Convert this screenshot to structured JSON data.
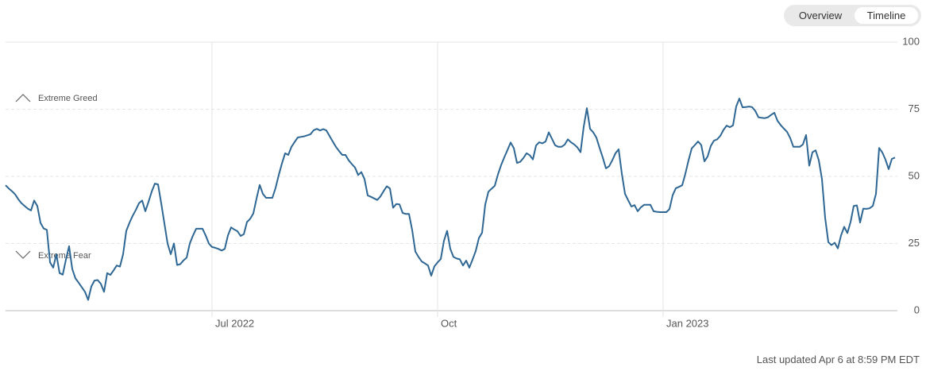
{
  "tabs": [
    "Overview",
    "Timeline"
  ],
  "footer": "Last updated Apr 6 at 8:59 PM EDT",
  "chart_data": {
    "type": "line",
    "annotations": [
      "Extreme Greed",
      "Extreme Fear"
    ],
    "color": "#2f6794",
    "ylim": [
      0,
      100
    ],
    "yticks": [
      0,
      25,
      50,
      75,
      100
    ],
    "grid": true,
    "categories": [
      null,
      null,
      null,
      null,
      null,
      null,
      null,
      null,
      null,
      null,
      null,
      null,
      null,
      null,
      null,
      null,
      null,
      null,
      null,
      null,
      null,
      null,
      null,
      null,
      null,
      null,
      null,
      null,
      null,
      null,
      null,
      null,
      null,
      null,
      null,
      null,
      null,
      null,
      null,
      null,
      null,
      null,
      null,
      null,
      null,
      null,
      null,
      null,
      null,
      null,
      null,
      null,
      null,
      null,
      null,
      null,
      null,
      null,
      null,
      null,
      null,
      null,
      null,
      null,
      null,
      "Jul 2022",
      null,
      null,
      null,
      null,
      null,
      null,
      null,
      null,
      null,
      null,
      null,
      null,
      null,
      null,
      null,
      null,
      null,
      null,
      null,
      null,
      null,
      null,
      null,
      null,
      null,
      null,
      null,
      null,
      null,
      null,
      null,
      null,
      null,
      null,
      null,
      null,
      null,
      null,
      null,
      null,
      null,
      null,
      null,
      null,
      null,
      null,
      null,
      null,
      null,
      null,
      null,
      null,
      null,
      null,
      null,
      null,
      null,
      null,
      null,
      null,
      null,
      null,
      null,
      null,
      null,
      null,
      null,
      null,
      null,
      null,
      "Oct",
      null,
      null,
      null,
      null,
      null,
      null,
      null,
      null,
      null,
      null,
      null,
      null,
      null,
      null,
      null,
      null,
      null,
      null,
      null,
      null,
      null,
      null,
      null,
      null,
      null,
      null,
      null,
      null,
      null,
      null,
      null,
      null,
      null,
      null,
      null,
      null,
      null,
      null,
      null,
      null,
      null,
      null,
      null,
      null,
      null,
      null,
      null,
      null,
      null,
      null,
      null,
      null,
      null,
      null,
      null,
      null,
      null,
      null,
      null,
      null,
      null,
      null,
      null,
      null,
      null,
      null,
      null,
      null,
      null,
      null,
      "Jan 2023",
      null,
      null,
      null,
      null,
      null,
      null,
      null,
      null,
      null,
      null,
      null,
      null,
      null,
      null,
      null,
      null,
      null,
      null,
      null,
      null,
      null,
      null,
      null,
      null,
      null,
      null,
      null,
      null,
      null,
      null,
      null,
      null,
      null,
      null,
      null,
      null,
      null,
      null,
      null,
      null,
      null,
      null,
      null,
      null,
      null,
      null,
      null,
      null,
      null,
      null,
      null,
      null,
      null,
      null,
      null,
      null,
      null,
      null,
      null,
      null,
      null,
      null,
      null,
      null,
      null,
      null,
      null,
      null,
      null,
      null,
      null,
      null,
      null
    ],
    "values": [
      46.7,
      45.5,
      44.5,
      43.3,
      41.5,
      40,
      39,
      38,
      37.3,
      41,
      39,
      32.7,
      30.6,
      30.1,
      18,
      16,
      21,
      14,
      13.4,
      19,
      24,
      15.5,
      12,
      10.4,
      8.7,
      7,
      4,
      9,
      11.2,
      11.4,
      10,
      7,
      14,
      13.3,
      15,
      16.8,
      16.4,
      21,
      29.7,
      32.7,
      35.3,
      37.5,
      40,
      41,
      37,
      40.5,
      44.3,
      47.3,
      47,
      40,
      32.5,
      25,
      21,
      25,
      17,
      17.3,
      18.7,
      19.7,
      25,
      28,
      30.5,
      30.5,
      30.5,
      28,
      25,
      23.7,
      23.4,
      23,
      22.4,
      23,
      28,
      31,
      30.2,
      29.6,
      27.8,
      28.5,
      33,
      34.2,
      36.2,
      41.7,
      46.8,
      43.5,
      42,
      42,
      42,
      45.7,
      50.5,
      54.8,
      58.6,
      58,
      61,
      62.8,
      64.5,
      64.7,
      64.9,
      65.3,
      65.7,
      67.2,
      67.7,
      67.1,
      67.6,
      67.1,
      65,
      63,
      61,
      59.4,
      58,
      58,
      56,
      54.6,
      53.3,
      50.5,
      51.6,
      49,
      42.9,
      42.4,
      41.8,
      41.2,
      42.5,
      44.5,
      46.3,
      45.5,
      38.3,
      39.7,
      39.6,
      36.4,
      36,
      36,
      30,
      22,
      20,
      18.3,
      17.6,
      16.8,
      13,
      16.5,
      18,
      19.2,
      26,
      29.7,
      23,
      20,
      19.4,
      19.1,
      16.8,
      18.6,
      16,
      19,
      22.2,
      27,
      29,
      39.5,
      44.3,
      45.4,
      46.5,
      50.7,
      54.2,
      57.1,
      59.8,
      62.6,
      60.5,
      55,
      55.4,
      56.8,
      58.6,
      57.9,
      56.3,
      61.5,
      62.7,
      62.3,
      63,
      66.4,
      64,
      61.6,
      61,
      61,
      61.8,
      63.8,
      62.7,
      61.9,
      60.8,
      59,
      68.5,
      75.4,
      67.7,
      66.4,
      64.4,
      60.6,
      57,
      53,
      53.8,
      56,
      58.6,
      60.1,
      51,
      43.5,
      41.1,
      38.8,
      39.3,
      37,
      38.5,
      39.4,
      39.4,
      39.4,
      37,
      36.8,
      36.7,
      36.7,
      36.7,
      37.8,
      43,
      45.6,
      46.1,
      46.7,
      51,
      56,
      60.4,
      61.7,
      63,
      61.7,
      55.6,
      57.4,
      61.3,
      63.3,
      63.8,
      65.1,
      67.3,
      68.9,
      68.3,
      69,
      76,
      79,
      75.7,
      75.8,
      76,
      75.8,
      74.4,
      72,
      71.8,
      71.7,
      72,
      72.9,
      73.7,
      70.7,
      69.1,
      67.8,
      66.6,
      64.3,
      61,
      61,
      61,
      61.9,
      65.4,
      54,
      59,
      59.7,
      56,
      49,
      34.6,
      25.5,
      24.4,
      25.3,
      23.2,
      28,
      31.2,
      28.9,
      33,
      39,
      39.2,
      32.8,
      38,
      37.9,
      38.1,
      39,
      43.5,
      60.6,
      58.9,
      56.2,
      52.7,
      56.5,
      57
    ]
  }
}
